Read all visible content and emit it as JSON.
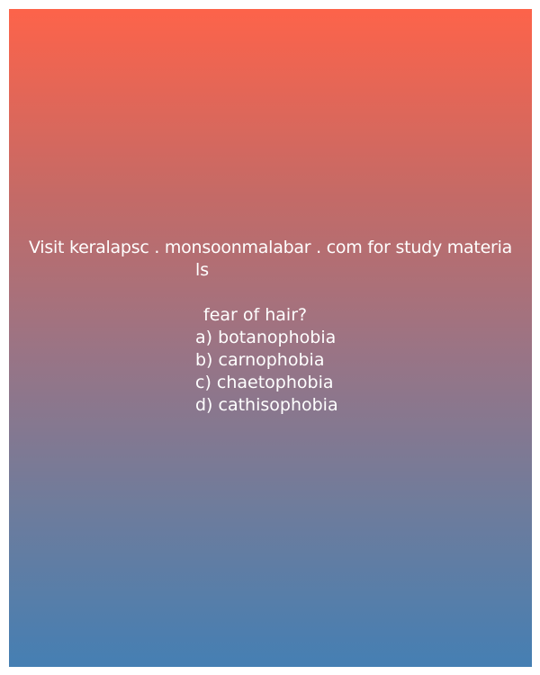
{
  "promo": {
    "line1": "Visit keralapsc . monsoonmalabar . com for study materia",
    "line2": "ls"
  },
  "question": "fear of hair?",
  "options": [
    "a) botanophobia",
    "b) carnophobia",
    "c) chaetophobia",
    "d) cathisophobia"
  ],
  "colors": {
    "gradient_top": "#fd634a",
    "gradient_bottom": "#457fb3",
    "text": "#ffffff"
  }
}
